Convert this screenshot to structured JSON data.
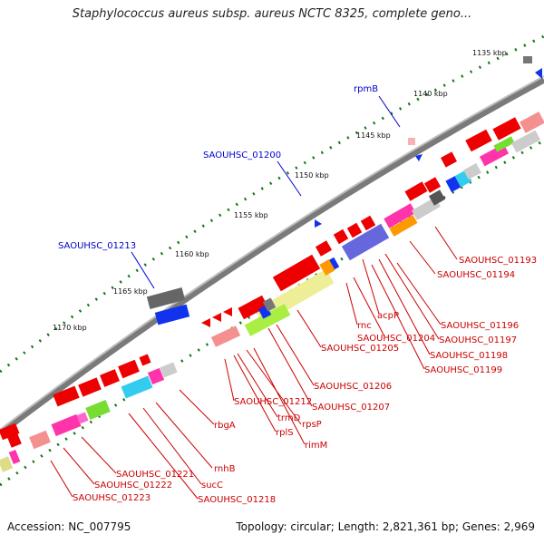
{
  "header": {
    "title": "Staphylococcus aureus subsp. aureus NCTC 8325, complete geno..."
  },
  "footer": {
    "accession": "Accession: NC_007795",
    "topology": "Topology: circular; Length: 2,821,361 bp; Genes: 2,969"
  },
  "colors": {
    "forward": "#ee0000",
    "reverse_blue": "#0022dd",
    "backbone": "#888888",
    "ticks": "#007700",
    "label_fwd": "#0000cc",
    "label_rev": "#cc0000"
  },
  "kbp_labels": [
    "1135 kbp",
    "1140 kbp",
    "1145 kbp",
    "1150 kbp",
    "1155 kbp",
    "1160 kbp",
    "1165 kbp",
    "1170 kbp"
  ],
  "gene_labels_top": [
    "rpmB",
    "SAOUHSC_01200",
    "SAOUHSC_01213"
  ],
  "gene_labels_bottom": [
    "SAOUHSC_01193",
    "SAOUHSC_01194",
    "SAOUHSC_01196",
    "SAOUHSC_01197",
    "acpP",
    "SAOUHSC_01198",
    "SAOUHSC_01199",
    "rnc",
    "SAOUHSC_01204",
    "SAOUHSC_01205",
    "SAOUHSC_01206",
    "SAOUHSC_01207",
    "SAOUHSC_01212",
    "trmD",
    "rpsP",
    "rplS",
    "rimM",
    "rbgA",
    "rnhB",
    "sucC",
    "SAOUHSC_01218",
    "SAOUHSC_01221",
    "SAOUHSC_01222",
    "SAOUHSC_01223"
  ]
}
